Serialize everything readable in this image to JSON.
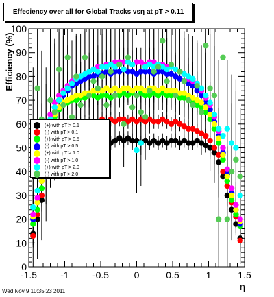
{
  "title": "Effeciency over all for Global Tracks vsη at pT > 0.11",
  "timestamp": "Wed Nov  9 10:35:23 2011",
  "chart_data": {
    "type": "scatter",
    "title": "Effeciency over all for Global Tracks vsη at pT > 0.11",
    "xlabel": "η",
    "ylabel": "Efficiency (%)",
    "xlim": [
      -1.5,
      1.5
    ],
    "ylim": [
      0,
      100
    ],
    "xticks": [
      "-1.5",
      "-1",
      "-0.5",
      "0",
      "0.5",
      "1",
      "1.5"
    ],
    "yticks": [
      "0",
      "10",
      "20",
      "30",
      "40",
      "50",
      "60",
      "70",
      "80",
      "90",
      "100"
    ],
    "grid": false,
    "legend_position": "left-middle",
    "x": [
      -1.44,
      -1.38,
      -1.32,
      -1.26,
      -1.2,
      -1.14,
      -1.08,
      -1.02,
      -0.96,
      -0.9,
      -0.84,
      -0.78,
      -0.72,
      -0.66,
      -0.6,
      -0.54,
      -0.48,
      -0.42,
      -0.36,
      -0.3,
      -0.24,
      -0.18,
      -0.12,
      -0.06,
      0.0,
      0.06,
      0.12,
      0.18,
      0.24,
      0.3,
      0.36,
      0.42,
      0.48,
      0.54,
      0.6,
      0.66,
      0.72,
      0.78,
      0.84,
      0.9,
      0.96,
      1.02,
      1.08,
      1.14,
      1.2,
      1.26,
      1.32,
      1.38,
      1.44
    ],
    "series": [
      {
        "name": "(+) with pT > 0.1",
        "color": "#000000",
        "values": [
          14,
          20,
          28,
          42,
          50,
          52,
          52,
          53,
          52,
          52,
          53,
          53,
          52,
          53,
          53,
          52,
          53,
          53,
          52,
          53,
          54,
          53,
          54,
          53,
          53,
          52,
          53,
          52,
          53,
          52,
          53,
          52,
          53,
          53,
          52,
          53,
          52,
          52,
          53,
          52,
          51,
          50,
          48,
          44,
          38,
          30,
          24,
          18,
          12
        ]
      },
      {
        "name": "(-) with pT > 0.1",
        "color": "#ff0000",
        "values": [
          13,
          22,
          30,
          45,
          55,
          58,
          59,
          60,
          60,
          59,
          60,
          60,
          61,
          60,
          61,
          61,
          62,
          61,
          62,
          61,
          62,
          62,
          61,
          62,
          61,
          62,
          61,
          62,
          61,
          61,
          62,
          61,
          60,
          61,
          60,
          59,
          58,
          58,
          57,
          56,
          55,
          53,
          50,
          47,
          40,
          34,
          27,
          21,
          11
        ]
      },
      {
        "name": "(+) with pT > 0.5",
        "color": "#00ff00",
        "values": [
          18,
          24,
          33,
          48,
          58,
          63,
          66,
          68,
          69,
          70,
          70,
          71,
          71,
          72,
          72,
          71,
          72,
          72,
          71,
          72,
          72,
          73,
          72,
          73,
          72,
          73,
          72,
          72,
          73,
          72,
          73,
          72,
          72,
          72,
          71,
          71,
          70,
          69,
          68,
          67,
          65,
          62,
          58,
          52,
          45,
          36,
          28,
          22,
          17
        ]
      },
      {
        "name": "(-) with pT > 0.5",
        "color": "#0000ff",
        "values": [
          20,
          27,
          36,
          52,
          62,
          67,
          70,
          72,
          74,
          76,
          77,
          78,
          79,
          80,
          80,
          81,
          81,
          82,
          81,
          82,
          82,
          83,
          82,
          82,
          81,
          82,
          82,
          82,
          81,
          82,
          82,
          81,
          81,
          80,
          79,
          78,
          77,
          76,
          74,
          72,
          69,
          66,
          61,
          55,
          48,
          39,
          31,
          24,
          18
        ]
      },
      {
        "name": "(+) with pT > 1.0",
        "color": "#ffff00",
        "values": [
          21,
          27,
          36,
          51,
          60,
          64,
          67,
          69,
          70,
          71,
          72,
          72,
          73,
          73,
          74,
          74,
          74,
          75,
          74,
          75,
          74,
          75,
          75,
          74,
          75,
          75,
          74,
          75,
          75,
          74,
          75,
          74,
          74,
          74,
          73,
          73,
          72,
          71,
          70,
          69,
          67,
          64,
          60,
          54,
          47,
          38,
          30,
          24,
          19
        ]
      },
      {
        "name": "(-) with pT > 1.0",
        "color": "#ff00ff",
        "values": [
          22,
          29,
          38,
          54,
          64,
          69,
          72,
          74,
          76,
          78,
          79,
          80,
          81,
          82,
          83,
          84,
          84,
          85,
          85,
          86,
          86,
          86,
          86,
          85,
          86,
          86,
          85,
          86,
          86,
          85,
          85,
          84,
          84,
          83,
          82,
          81,
          79,
          78,
          76,
          74,
          71,
          68,
          63,
          57,
          50,
          41,
          33,
          26,
          20
        ]
      },
      {
        "name": "(+) with pT > 2.0",
        "color": "#00ffff",
        "values": [
          25,
          32,
          40,
          55,
          62,
          67,
          70,
          73,
          75,
          77,
          79,
          80,
          81,
          82,
          83,
          82,
          84,
          84,
          85,
          84,
          85,
          83,
          86,
          85,
          49,
          52,
          84,
          85,
          84,
          85,
          84,
          83,
          84,
          83,
          82,
          81,
          80,
          79,
          77,
          75,
          72,
          69,
          64,
          58,
          55,
          58,
          52,
          50,
          30
        ]
      },
      {
        "name": "(-) with pT > 2.0",
        "color": "#55cc55",
        "values": [
          55,
          75,
          62,
          48,
          70,
          65,
          83,
          68,
          88,
          63,
          80,
          68,
          88,
          72,
          78,
          75,
          80,
          68,
          82,
          72,
          85,
          60,
          88,
          67,
          72,
          65,
          63,
          74,
          82,
          84,
          95,
          78,
          85,
          72,
          82,
          78,
          70,
          68,
          76,
          65,
          93,
          75,
          72,
          20,
          88,
          20,
          40,
          45,
          38
        ]
      }
    ]
  }
}
